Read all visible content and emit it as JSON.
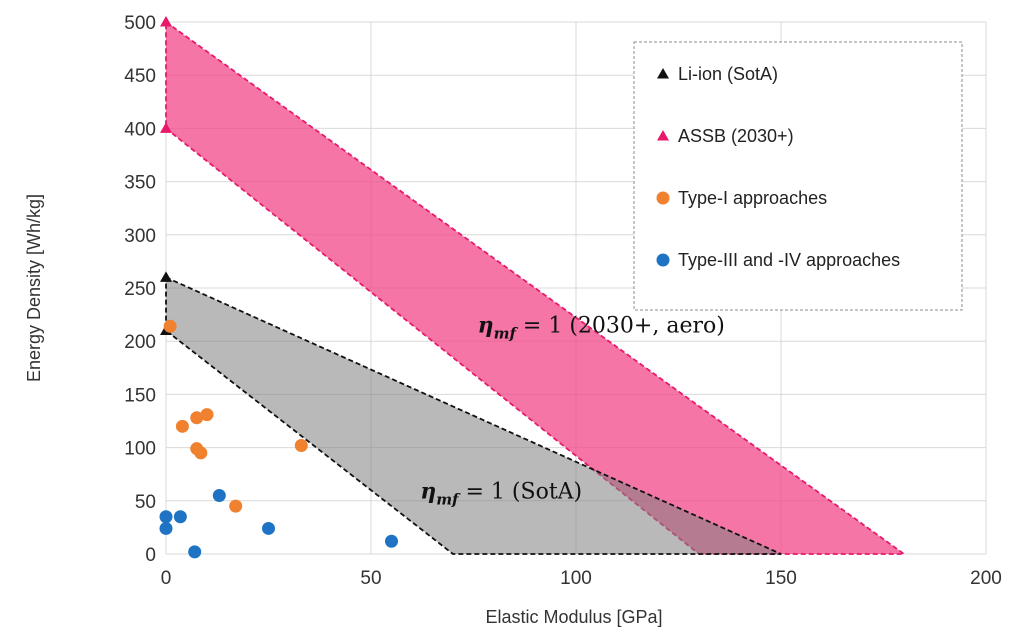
{
  "chart_data": {
    "type": "scatter",
    "xlabel": "Elastic Modulus [GPa]",
    "ylabel": "Energy Density [Wh/kg]",
    "xlim": [
      0,
      200
    ],
    "ylim": [
      0,
      500
    ],
    "x_ticks": [
      0,
      50,
      100,
      150,
      200
    ],
    "y_ticks": [
      0,
      50,
      100,
      150,
      200,
      250,
      300,
      350,
      400,
      450,
      500
    ],
    "grid": true,
    "legend_position": "top-right",
    "series": [
      {
        "name": "Li-ion (SotA)",
        "marker": "triangle",
        "color": "#111111",
        "points": [
          [
            0,
            260
          ],
          [
            0,
            210
          ]
        ]
      },
      {
        "name": "ASSB (2030+)",
        "marker": "triangle",
        "color": "#e8196a",
        "points": [
          [
            0,
            500
          ],
          [
            0,
            400
          ]
        ]
      },
      {
        "name": "Type-I approaches",
        "marker": "circle",
        "color": "#f0812e",
        "points": [
          [
            1,
            214
          ],
          [
            4,
            120
          ],
          [
            7.5,
            128
          ],
          [
            10,
            131
          ],
          [
            7.5,
            99
          ],
          [
            8.5,
            95
          ],
          [
            33,
            102
          ],
          [
            17,
            45
          ]
        ]
      },
      {
        "name": "Type-III and -IV approaches",
        "marker": "circle",
        "color": "#1f73c4",
        "points": [
          [
            0,
            35
          ],
          [
            0,
            24
          ],
          [
            3.5,
            35
          ],
          [
            13,
            55
          ],
          [
            25,
            24
          ],
          [
            7,
            2
          ],
          [
            55,
            12
          ]
        ]
      }
    ],
    "regions": [
      {
        "label_main": "η",
        "label_sub": "mf",
        "label_rest": " = 1 (2030+, aero)",
        "fill": "#f2478a",
        "fill_opacity": 0.75,
        "stroke": "#e8196a",
        "polygon": [
          [
            0,
            500
          ],
          [
            180,
            0
          ],
          [
            130,
            0
          ],
          [
            0,
            400
          ]
        ],
        "label_at": [
          76,
          208
        ]
      },
      {
        "label_main": "η",
        "label_sub": "mf",
        "label_rest": " = 1 (SotA)",
        "fill": "#7f7f7f",
        "fill_opacity": 0.55,
        "stroke": "#111111",
        "polygon": [
          [
            0,
            260
          ],
          [
            150,
            0
          ],
          [
            70,
            0
          ],
          [
            0,
            210
          ]
        ],
        "label_at": [
          62,
          52
        ]
      }
    ]
  }
}
